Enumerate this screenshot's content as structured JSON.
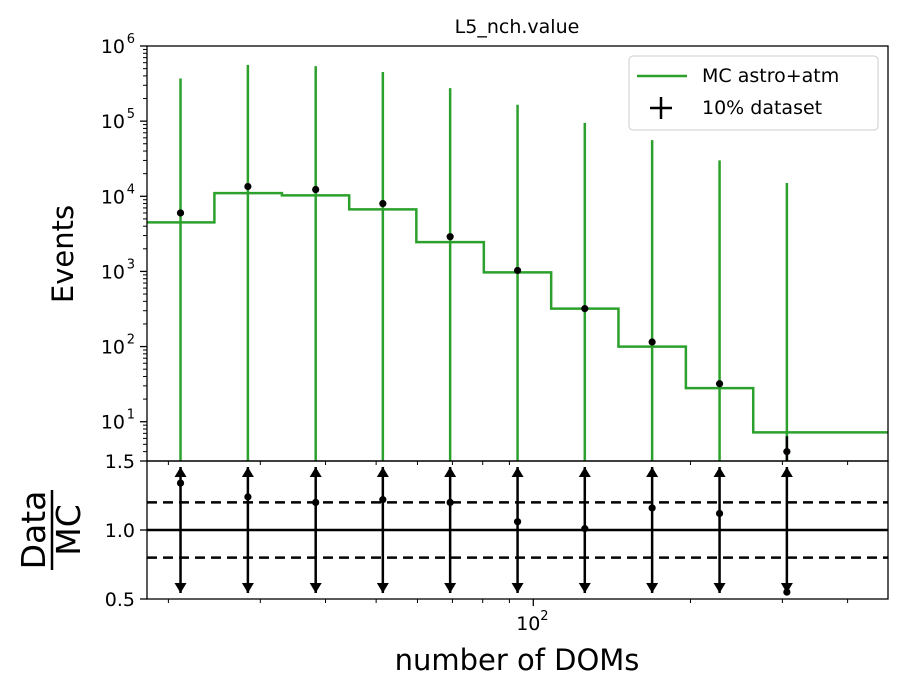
{
  "title": "L5_nch.value",
  "chart_data": [
    {
      "type": "line",
      "panel": "main",
      "title": "L5_nch.value",
      "xlabel": "",
      "ylabel": "Events",
      "x_scale": "log",
      "y_scale": "log",
      "ylim": [
        3,
        1000000
      ],
      "y_ticks": [
        {
          "value": 10,
          "base": "10",
          "exp": "1"
        },
        {
          "value": 100,
          "base": "10",
          "exp": "2"
        },
        {
          "value": 1000,
          "base": "10",
          "exp": "3"
        },
        {
          "value": 10000,
          "base": "10",
          "exp": "4"
        },
        {
          "value": 100000,
          "base": "10",
          "exp": "5"
        },
        {
          "value": 1000000,
          "base": "10",
          "exp": "6"
        }
      ],
      "legend": {
        "placement": "top-right",
        "entries": [
          {
            "label": "MC astro+atm",
            "color": "#2ca02c",
            "marker": "line"
          },
          {
            "label": "10% dataset",
            "color": "#000000",
            "marker": "errorbar"
          }
        ]
      },
      "bin_edges": [
        18.2,
        24.5,
        33.0,
        44.4,
        59.7,
        80.4,
        108.2,
        145.6,
        196.0,
        263.8,
        355.1,
        478.0
      ],
      "mc_values": [
        4500,
        11000,
        10300,
        6700,
        2450,
        970,
        320,
        100,
        28,
        7.2,
        7.2
      ],
      "mc_error_upper": [
        370000,
        560000,
        540000,
        450000,
        275000,
        165000,
        95000,
        56000,
        30000,
        15000
      ],
      "data_x": [
        21.1,
        28.4,
        38.3,
        51.5,
        69.3,
        93.3,
        125.5,
        168.9,
        227.4,
        306.0
      ],
      "data_values": [
        6000,
        13500,
        12300,
        8000,
        2900,
        1030,
        320,
        115,
        32,
        4
      ]
    },
    {
      "type": "line",
      "panel": "ratio",
      "xlabel": "number of DOMs",
      "ylabel_numerator": "Data",
      "ylabel_denominator": "MC",
      "x_scale": "log",
      "ylim": [
        0.5,
        1.5
      ],
      "y_ticks": [
        "0.5",
        "1.0",
        "1.5"
      ],
      "x_ticks": [
        {
          "value": 100,
          "base": "10",
          "exp": "2"
        }
      ],
      "reference_lines": [
        {
          "y": 1.0,
          "style": "solid"
        },
        {
          "y": 1.2,
          "style": "dashed"
        },
        {
          "y": 0.8,
          "style": "dashed"
        }
      ],
      "x": [
        21.1,
        28.4,
        38.3,
        51.5,
        69.3,
        93.3,
        125.5,
        168.9,
        227.4,
        306.0
      ],
      "ratio_values": [
        1.34,
        1.24,
        1.2,
        1.22,
        1.2,
        1.06,
        1.01,
        1.16,
        1.12,
        0.55
      ],
      "ratio_error": "extends beyond axis range (arrows)"
    }
  ]
}
